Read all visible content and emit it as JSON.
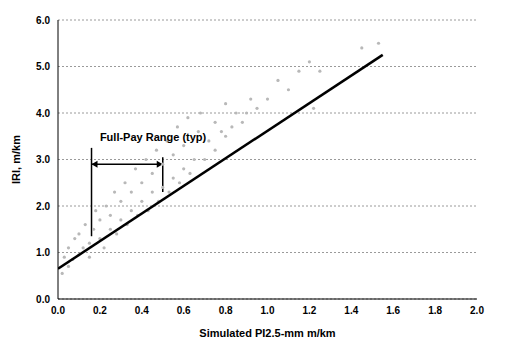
{
  "chart_data": {
    "type": "scatter",
    "x_label": "Simulated PI2.5-mm m/km",
    "y_label": "IRI, m/km",
    "xlim": [
      0,
      2
    ],
    "xticks": [
      {
        "value": 0,
        "label": "0.0"
      },
      {
        "value": 0.2,
        "label": "0.2"
      },
      {
        "value": 0.4,
        "label": "0.4"
      },
      {
        "value": 0.6,
        "label": "0.6"
      },
      {
        "value": 0.8,
        "label": "0.8"
      },
      {
        "value": 1,
        "label": "1.0"
      },
      {
        "value": 1.2,
        "label": "1.2"
      },
      {
        "value": 1.4,
        "label": "1.4"
      },
      {
        "value": 1.6,
        "label": "1.6"
      },
      {
        "value": 1.8,
        "label": "1.8"
      },
      {
        "value": 2,
        "label": "2.0"
      }
    ],
    "ylim": [
      0,
      6
    ],
    "yticks": [
      {
        "value": 0,
        "label": "0.0"
      },
      {
        "value": 1,
        "label": "1.0"
      },
      {
        "value": 2,
        "label": "2.0"
      },
      {
        "value": 3,
        "label": "3.0"
      },
      {
        "value": 4,
        "label": "4.0"
      },
      {
        "value": 5,
        "label": "5.0"
      },
      {
        "value": 6,
        "label": "6.0"
      }
    ],
    "grid": true,
    "series": [
      {
        "type": "scatter",
        "color": "#b8b8b8",
        "marker": "circle",
        "x": [
          0.02,
          0.03,
          0.05,
          0.05,
          0.07,
          0.08,
          0.1,
          0.1,
          0.12,
          0.13,
          0.15,
          0.15,
          0.17,
          0.18,
          0.2,
          0.2,
          0.22,
          0.23,
          0.25,
          0.25,
          0.27,
          0.28,
          0.3,
          0.3,
          0.32,
          0.33,
          0.35,
          0.35,
          0.37,
          0.38,
          0.4,
          0.4,
          0.42,
          0.43,
          0.45,
          0.45,
          0.47,
          0.48,
          0.5,
          0.5,
          0.52,
          0.53,
          0.55,
          0.55,
          0.57,
          0.58,
          0.6,
          0.6,
          0.62,
          0.63,
          0.65,
          0.67,
          0.68,
          0.7,
          0.72,
          0.75,
          0.75,
          0.78,
          0.8,
          0.8,
          0.83,
          0.85,
          0.88,
          0.9,
          0.92,
          0.95,
          1.0,
          1.05,
          1.1,
          1.15,
          1.2,
          1.22,
          1.25,
          1.45,
          1.53
        ],
        "values": [
          0.55,
          0.9,
          0.7,
          1.1,
          0.85,
          1.3,
          0.95,
          1.4,
          1.1,
          1.6,
          1.2,
          0.9,
          1.5,
          1.9,
          1.3,
          1.7,
          1.1,
          2.0,
          1.5,
          1.8,
          2.3,
          1.4,
          1.7,
          2.1,
          2.5,
          1.6,
          1.9,
          2.3,
          2.8,
          1.8,
          2.1,
          2.5,
          3.0,
          1.9,
          2.3,
          2.7,
          3.2,
          2.1,
          2.4,
          2.9,
          3.4,
          2.3,
          2.6,
          3.1,
          3.7,
          2.5,
          2.8,
          3.3,
          3.9,
          2.7,
          3.0,
          3.6,
          4.0,
          3.0,
          3.4,
          3.8,
          3.2,
          3.6,
          3.5,
          4.2,
          3.7,
          4.0,
          3.8,
          4.0,
          4.3,
          4.1,
          4.3,
          4.7,
          4.5,
          4.9,
          5.1,
          4.1,
          4.9,
          5.4,
          5.5
        ]
      },
      {
        "type": "line",
        "color": "#000000",
        "x": [
          0,
          1.55
        ],
        "values": [
          0.65,
          5.25
        ]
      }
    ],
    "annotation": {
      "text": "Full-Pay Range (typ)",
      "x_start": 0.16,
      "x_end": 0.5,
      "arrow_y": 2.9,
      "left_bar": [
        1.35,
        3.25
      ],
      "right_bar": [
        2.3,
        3.05
      ],
      "text_x": 0.2,
      "text_y": 3.45
    }
  }
}
